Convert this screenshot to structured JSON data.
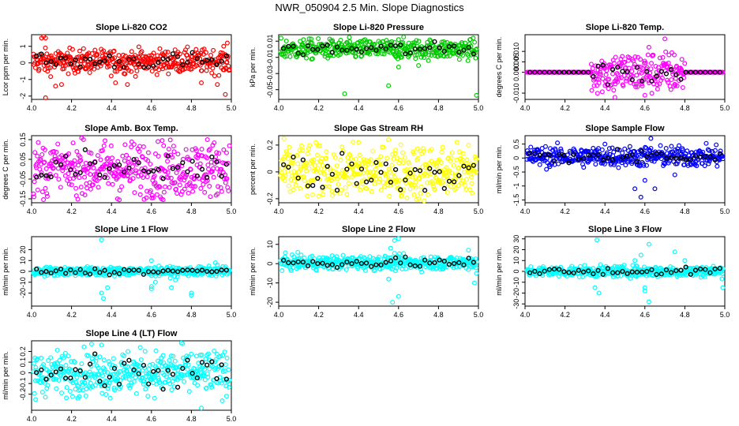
{
  "figure_title": "NWR_050904  2.5 Min. Slope Diagnostics",
  "chart_data": [
    {
      "type": "scatter",
      "title": "Slope Li-820 CO2",
      "ylabel": "Lcor ppm per min.",
      "xlim": [
        4.0,
        5.0
      ],
      "ylim": [
        -2.2,
        1.7
      ],
      "yticks": [
        -2,
        -1,
        0,
        1
      ],
      "xticks": [
        4.0,
        4.2,
        4.4,
        4.6,
        4.8,
        5.0
      ],
      "xtick_labels": [
        "4.0",
        "4.2",
        "4.4",
        "4.6",
        "4.8",
        "5.0"
      ],
      "color": "#ff0000",
      "center": 0.1,
      "spread": 0.35,
      "outliers": [
        [
          4.05,
          1.5
        ],
        [
          4.06,
          1.6
        ],
        [
          4.07,
          1.5
        ],
        [
          4.08,
          -0.5
        ],
        [
          4.12,
          -1.4
        ],
        [
          4.07,
          -2.1
        ],
        [
          4.15,
          -1.3
        ],
        [
          4.42,
          -1.2
        ],
        [
          4.48,
          -1.3
        ],
        [
          4.85,
          -1.2
        ],
        [
          4.93,
          -1.3
        ],
        [
          4.97,
          -1.9
        ],
        [
          4.98,
          1.2
        ]
      ]
    },
    {
      "type": "scatter",
      "title": "Slope Li-820 Pressure",
      "ylabel": "kPa per min.",
      "xlim": [
        4.0,
        5.0
      ],
      "ylim": [
        -0.062,
        0.018
      ],
      "yticks": [
        -0.05,
        -0.03,
        -0.01,
        0.01
      ],
      "xticks": [
        4.0,
        4.2,
        4.4,
        4.6,
        4.8,
        5.0
      ],
      "xtick_labels": [
        "4.0",
        "4.2",
        "4.4",
        "4.6",
        "4.8",
        "5.0"
      ],
      "color": "#00cc00",
      "center": 0.0,
      "spread": 0.006,
      "outliers": [
        [
          4.33,
          -0.055
        ],
        [
          4.55,
          -0.045
        ],
        [
          4.99,
          -0.057
        ],
        [
          4.6,
          -0.022
        ],
        [
          4.6,
          0.012
        ],
        [
          4.7,
          -0.02
        ],
        [
          4.5,
          0.01
        ]
      ]
    },
    {
      "type": "scatter",
      "title": "Slope Li-820 Temp.",
      "ylabel": "degrees C per min.",
      "xlim": [
        4.0,
        5.0
      ],
      "ylim": [
        -0.013,
        0.018
      ],
      "yticks": [
        -0.01,
        0.0,
        0.005,
        0.01
      ],
      "ytick_labels": [
        "-0.010",
        "0.000",
        "0.005",
        "0.010"
      ],
      "xticks": [
        4.0,
        4.2,
        4.4,
        4.6,
        4.8,
        5.0
      ],
      "xtick_labels": [
        "4.0",
        "4.2",
        "4.4",
        "4.6",
        "4.8",
        "5.0"
      ],
      "color": "#ff00ff",
      "center": 0.0,
      "spread": 0.005,
      "outliers": [
        [
          4.7,
          0.016
        ],
        [
          4.62,
          0.012
        ],
        [
          4.45,
          -0.012
        ],
        [
          4.6,
          -0.011
        ]
      ]
    },
    {
      "type": "scatter",
      "title": "Slope Amb. Box Temp.",
      "ylabel": "degrees C per min.",
      "xlim": [
        4.0,
        5.0
      ],
      "ylim": [
        -0.17,
        0.17
      ],
      "yticks": [
        -0.15,
        -0.05,
        0.05,
        0.15
      ],
      "xticks": [
        4.0,
        4.2,
        4.4,
        4.6,
        4.8,
        5.0
      ],
      "xtick_labels": [
        "4.0",
        "4.2",
        "4.4",
        "4.6",
        "4.8",
        "5.0"
      ],
      "color": "#ff00ff",
      "center": 0.0,
      "spread": 0.07,
      "outliers": [
        [
          4.26,
          0.15
        ],
        [
          4.43,
          -0.15
        ],
        [
          4.65,
          -0.15
        ],
        [
          4.88,
          0.15
        ]
      ]
    },
    {
      "type": "scatter",
      "title": "Slope Gas Stream RH",
      "ylabel": "percent per min.",
      "xlim": [
        4.0,
        5.0
      ],
      "ylim": [
        -0.23,
        0.27
      ],
      "yticks": [
        -0.2,
        0.0,
        0.2
      ],
      "xticks": [
        4.0,
        4.2,
        4.4,
        4.6,
        4.8,
        5.0
      ],
      "xtick_labels": [
        "4.0",
        "4.2",
        "4.4",
        "4.6",
        "4.8",
        "5.0"
      ],
      "color": "#ffff00",
      "center": 0.0,
      "spread": 0.1,
      "outliers": [
        [
          4.4,
          0.22
        ],
        [
          4.55,
          0.24
        ],
        [
          4.7,
          -0.2
        ],
        [
          4.95,
          0.2
        ]
      ]
    },
    {
      "type": "scatter",
      "title": "Slope Sample Flow",
      "ylabel": "ml/min per min.",
      "xlim": [
        4.0,
        5.0
      ],
      "ylim": [
        -1.6,
        0.8
      ],
      "yticks": [
        -1.5,
        -1.0,
        -0.5,
        0.0,
        0.5
      ],
      "xticks": [
        4.0,
        4.2,
        4.4,
        4.6,
        4.8,
        5.0
      ],
      "xtick_labels": [
        "4.0",
        "4.2",
        "4.4",
        "4.6",
        "4.8",
        "5.0"
      ],
      "color": "#0000ff",
      "center": 0.05,
      "spread": 0.18,
      "outliers": [
        [
          4.55,
          -1.1
        ],
        [
          4.58,
          -1.4
        ],
        [
          4.6,
          -0.8
        ],
        [
          4.65,
          -1.1
        ],
        [
          4.63,
          0.7
        ],
        [
          4.4,
          0.5
        ],
        [
          4.75,
          -0.6
        ]
      ]
    },
    {
      "type": "scatter",
      "title": "Slope Line 1 Flow",
      "ylabel": "ml/min per min.",
      "xlim": [
        4.0,
        5.0
      ],
      "ylim": [
        -32,
        32
      ],
      "yticks": [
        -20,
        -10,
        0,
        10,
        20
      ],
      "xticks": [
        4.0,
        4.2,
        4.4,
        4.6,
        4.8,
        5.0
      ],
      "xtick_labels": [
        "4.0",
        "4.2",
        "4.4",
        "4.6",
        "4.8",
        "5.0"
      ],
      "color": "#00ffff",
      "center": 0.0,
      "spread": 2.0,
      "outliers": [
        [
          4.35,
          29
        ],
        [
          4.36,
          -25
        ],
        [
          4.35,
          -20
        ],
        [
          4.38,
          -15
        ],
        [
          4.6,
          -16
        ],
        [
          4.6,
          -14
        ],
        [
          4.62,
          -10
        ],
        [
          4.6,
          10
        ],
        [
          4.72,
          -8
        ],
        [
          4.7,
          -15
        ],
        [
          4.92,
          8
        ],
        [
          4.93,
          6
        ],
        [
          4.8,
          -22
        ],
        [
          4.8,
          -20
        ]
      ]
    },
    {
      "type": "scatter",
      "title": "Slope Line 2 Flow",
      "ylabel": "ml/min per min.",
      "xlim": [
        4.0,
        5.0
      ],
      "ylim": [
        -22,
        14
      ],
      "yticks": [
        -20,
        -10,
        0,
        10
      ],
      "xticks": [
        4.0,
        4.2,
        4.4,
        4.6,
        4.8,
        5.0
      ],
      "xtick_labels": [
        "4.0",
        "4.2",
        "4.4",
        "4.6",
        "4.8",
        "5.0"
      ],
      "color": "#00ffff",
      "center": 0.5,
      "spread": 1.8,
      "outliers": [
        [
          4.57,
          -20
        ],
        [
          4.6,
          -17
        ],
        [
          4.58,
          12
        ],
        [
          4.56,
          8
        ],
        [
          4.6,
          13
        ],
        [
          4.55,
          -8
        ],
        [
          4.95,
          7
        ],
        [
          4.98,
          -10
        ],
        [
          4.99,
          -5
        ]
      ]
    },
    {
      "type": "scatter",
      "title": "Slope Line 3 Flow",
      "ylabel": "ml/min per min.",
      "xlim": [
        4.0,
        5.0
      ],
      "ylim": [
        -32,
        32
      ],
      "yticks": [
        -30,
        -20,
        -10,
        0,
        10,
        20,
        30
      ],
      "xticks": [
        4.0,
        4.2,
        4.4,
        4.6,
        4.8,
        5.0
      ],
      "xtick_labels": [
        "4.0",
        "4.2",
        "4.4",
        "4.6",
        "4.8",
        "5.0"
      ],
      "color": "#00ffff",
      "center": 0.0,
      "spread": 2.5,
      "outliers": [
        [
          4.36,
          29
        ],
        [
          4.37,
          -20
        ],
        [
          4.35,
          -15
        ],
        [
          4.6,
          -18
        ],
        [
          4.6,
          -15
        ],
        [
          4.58,
          15
        ],
        [
          4.55,
          10
        ],
        [
          4.62,
          25
        ],
        [
          4.75,
          18
        ],
        [
          4.62,
          -28
        ],
        [
          4.99,
          -15
        ],
        [
          4.8,
          10
        ]
      ]
    },
    {
      "type": "scatter",
      "title": "Slope Line 4 (LT) Flow",
      "ylabel": "ml/min per min.",
      "xlim": [
        4.0,
        5.0
      ],
      "ylim": [
        -0.35,
        0.3
      ],
      "yticks": [
        -0.2,
        -0.1,
        0.0,
        0.1,
        0.2
      ],
      "xticks": [
        4.0,
        4.2,
        4.4,
        4.6,
        4.8,
        5.0
      ],
      "xtick_labels": [
        "4.0",
        "4.2",
        "4.4",
        "4.6",
        "4.8",
        "5.0"
      ],
      "color": "#00ffff",
      "center": 0.0,
      "spread": 0.1,
      "outliers": [
        [
          4.3,
          0.27
        ],
        [
          4.35,
          0.26
        ],
        [
          4.75,
          0.28
        ],
        [
          4.85,
          -0.33
        ],
        [
          4.02,
          -0.25
        ]
      ]
    }
  ]
}
